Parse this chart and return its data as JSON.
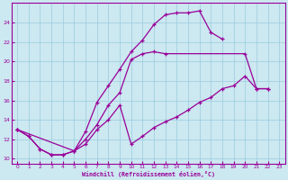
{
  "xlabel": "Windchill (Refroidissement éolien,°C)",
  "background_color": "#cce8f0",
  "grid_color": "#99cce0",
  "line_color": "#990099",
  "xlim": [
    -0.5,
    23.5
  ],
  "ylim": [
    9.5,
    26.0
  ],
  "xticks": [
    0,
    1,
    2,
    3,
    4,
    5,
    6,
    7,
    8,
    9,
    10,
    11,
    12,
    13,
    14,
    15,
    16,
    17,
    18,
    19,
    20,
    21,
    22,
    23
  ],
  "yticks": [
    10,
    12,
    14,
    16,
    18,
    20,
    22,
    24
  ],
  "line1_x": [
    0,
    1,
    2,
    3,
    4,
    5,
    6,
    7,
    8,
    9,
    10,
    11,
    12,
    13,
    14,
    15,
    16,
    17,
    18
  ],
  "line1_y": [
    13.0,
    12.3,
    11.0,
    10.4,
    10.4,
    10.8,
    12.8,
    15.8,
    17.5,
    19.2,
    21.0,
    22.2,
    23.8,
    24.8,
    25.0,
    25.0,
    25.2,
    23.0,
    22.3
  ],
  "line2_x": [
    0,
    1,
    2,
    3,
    4,
    5,
    6,
    7,
    8,
    9,
    10,
    11,
    12,
    13,
    20,
    21,
    22
  ],
  "line2_y": [
    13.0,
    12.3,
    11.0,
    10.4,
    10.4,
    10.8,
    12.0,
    13.5,
    15.5,
    16.8,
    20.2,
    20.8,
    21.0,
    20.8,
    20.8,
    17.2,
    17.2
  ],
  "line3_x": [
    0,
    5,
    6,
    7,
    8,
    9,
    10,
    11,
    12,
    13,
    14,
    15,
    16,
    17,
    18,
    19,
    20,
    21,
    22
  ],
  "line3_y": [
    13.0,
    10.8,
    11.5,
    13.0,
    14.0,
    15.5,
    11.5,
    12.3,
    13.2,
    13.8,
    14.3,
    15.0,
    15.8,
    16.3,
    17.2,
    17.5,
    18.5,
    17.2,
    17.2
  ]
}
